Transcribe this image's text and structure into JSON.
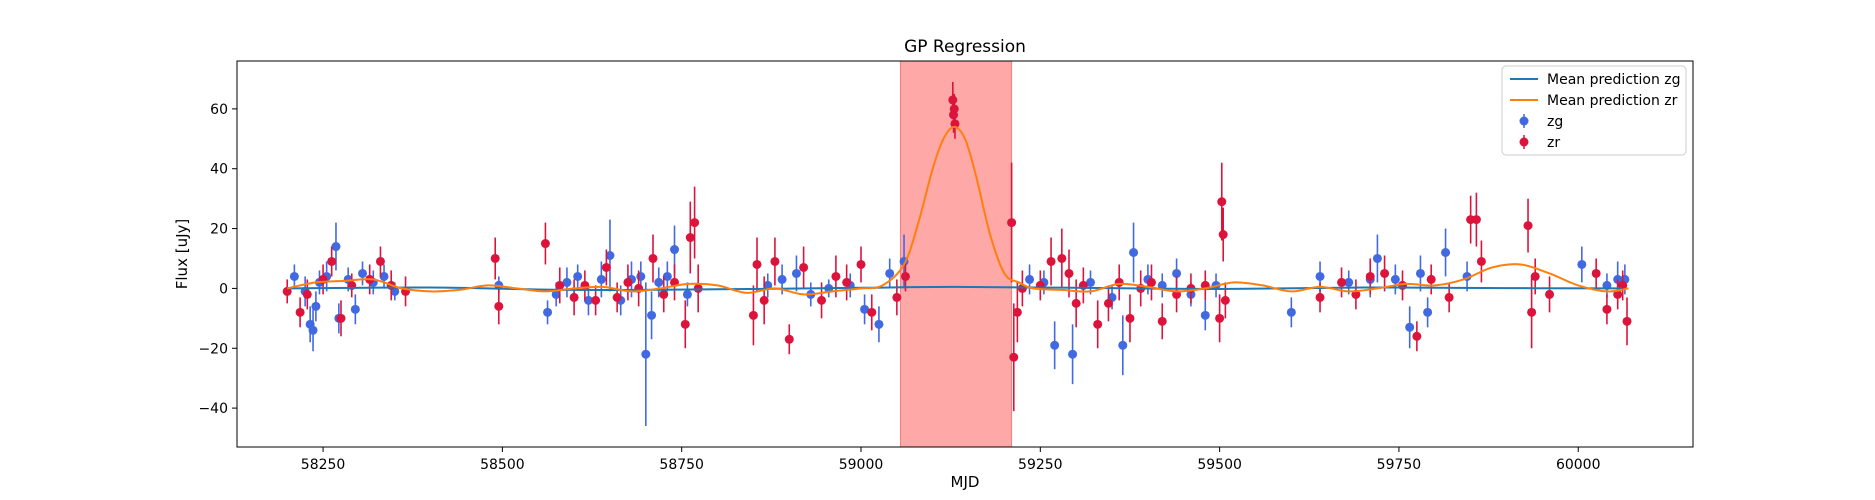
{
  "chart_data": {
    "type": "scatter",
    "title": "GP Regression",
    "xlabel": "MJD",
    "ylabel": "Flux [uJy]",
    "xlim": [
      58130,
      60160
    ],
    "ylim": [
      -53,
      76
    ],
    "xticks": [
      58250,
      58500,
      58750,
      59000,
      59250,
      59500,
      59750,
      60000
    ],
    "yticks": [
      -40,
      -20,
      0,
      20,
      40,
      60
    ],
    "grid": false,
    "legend_position": "top-right",
    "shaded_region": {
      "x": [
        59055,
        59210
      ],
      "color": "#ff9999"
    },
    "lines": [
      {
        "name": "Mean prediction zg",
        "color": "#1f77b4",
        "x": [
          58200,
          58400,
          58600,
          58800,
          59000,
          59130,
          59300,
          59500,
          59700,
          59900,
          60060
        ],
        "y": [
          0,
          0.3,
          -0.5,
          -0.3,
          0.2,
          0.5,
          0.2,
          -0.2,
          0.3,
          0.1,
          0
        ]
      },
      {
        "name": "Mean prediction zr",
        "color": "#ff7f0e",
        "x": [
          58200,
          58240,
          58280,
          58320,
          58360,
          58400,
          58440,
          58480,
          58520,
          58560,
          58600,
          58640,
          58680,
          58720,
          58760,
          58800,
          58840,
          58880,
          58920,
          58960,
          59000,
          59030,
          59060,
          59080,
          59100,
          59115,
          59130,
          59145,
          59160,
          59180,
          59200,
          59220,
          59240,
          59280,
          59320,
          59360,
          59400,
          59440,
          59480,
          59520,
          59560,
          59600,
          59640,
          59680,
          59720,
          59760,
          59800,
          59840,
          59880,
          59920,
          59960,
          60000,
          60040,
          60070
        ],
        "y": [
          0,
          2,
          2.5,
          3,
          0,
          -1,
          -0.5,
          1,
          0,
          -1,
          0,
          0.5,
          -1,
          0,
          1.5,
          1,
          -1.5,
          0,
          -2,
          -1,
          0,
          1,
          8,
          22,
          40,
          50,
          54,
          50,
          38,
          18,
          5,
          2,
          0,
          -0.5,
          -1,
          1.5,
          0.5,
          -1,
          0,
          2,
          1,
          -1,
          0.5,
          -1,
          0,
          1.5,
          1,
          3,
          7,
          8,
          5,
          1,
          -1,
          0
        ]
      }
    ],
    "series": [
      {
        "name": "zg",
        "color": "#4169e1",
        "points": [
          [
            58210,
            4,
            4
          ],
          [
            58225,
            -1,
            5
          ],
          [
            58232,
            -12,
            6
          ],
          [
            58236,
            -14,
            7
          ],
          [
            58240,
            -6,
            5
          ],
          [
            58245,
            2,
            4
          ],
          [
            58255,
            4,
            5
          ],
          [
            58268,
            14,
            8
          ],
          [
            58272,
            -10,
            5
          ],
          [
            58285,
            3,
            4
          ],
          [
            58295,
            -7,
            5
          ],
          [
            58305,
            5,
            4
          ],
          [
            58320,
            2,
            4
          ],
          [
            58335,
            4,
            4
          ],
          [
            58350,
            -1,
            3
          ],
          [
            58495,
            1,
            3
          ],
          [
            58563,
            -8,
            4
          ],
          [
            58575,
            -2,
            4
          ],
          [
            58590,
            2,
            5
          ],
          [
            58605,
            4,
            4
          ],
          [
            58620,
            -4,
            5
          ],
          [
            58638,
            3,
            6
          ],
          [
            58650,
            11,
            12
          ],
          [
            58665,
            -4,
            5
          ],
          [
            58680,
            3,
            6
          ],
          [
            58693,
            4,
            5
          ],
          [
            58700,
            -22,
            24
          ],
          [
            58708,
            -9,
            8
          ],
          [
            58718,
            2,
            5
          ],
          [
            58730,
            4,
            5
          ],
          [
            58740,
            13,
            8
          ],
          [
            58758,
            -2,
            4
          ],
          [
            58870,
            1,
            4
          ],
          [
            58890,
            3,
            5
          ],
          [
            58910,
            5,
            6
          ],
          [
            58930,
            -2,
            4
          ],
          [
            58955,
            0,
            3
          ],
          [
            58985,
            1,
            4
          ],
          [
            59005,
            -7,
            5
          ],
          [
            59025,
            -12,
            6
          ],
          [
            59040,
            5,
            5
          ],
          [
            59060,
            9,
            9
          ],
          [
            59235,
            3,
            5
          ],
          [
            59255,
            2,
            4
          ],
          [
            59270,
            -19,
            8
          ],
          [
            59295,
            -22,
            10
          ],
          [
            59320,
            2,
            4
          ],
          [
            59350,
            -3,
            4
          ],
          [
            59365,
            -19,
            10
          ],
          [
            59380,
            12,
            10
          ],
          [
            59400,
            3,
            5
          ],
          [
            59420,
            1,
            4
          ],
          [
            59440,
            5,
            5
          ],
          [
            59460,
            -2,
            4
          ],
          [
            59480,
            -9,
            5
          ],
          [
            59495,
            1,
            4
          ],
          [
            59600,
            -8,
            5
          ],
          [
            59640,
            4,
            5
          ],
          [
            59680,
            2,
            4
          ],
          [
            59710,
            3,
            6
          ],
          [
            59720,
            10,
            8
          ],
          [
            59745,
            3,
            5
          ],
          [
            59765,
            -13,
            7
          ],
          [
            59780,
            5,
            6
          ],
          [
            59790,
            -8,
            5
          ],
          [
            59815,
            12,
            8
          ],
          [
            59845,
            4,
            5
          ],
          [
            60005,
            8,
            6
          ],
          [
            60040,
            1,
            4
          ],
          [
            60055,
            3,
            6
          ],
          [
            60065,
            3,
            5
          ]
        ]
      },
      {
        "name": "zr",
        "color": "#dc143c",
        "points": [
          [
            58200,
            -1,
            4
          ],
          [
            58218,
            -8,
            5
          ],
          [
            58228,
            -2,
            5
          ],
          [
            58250,
            3,
            5
          ],
          [
            58262,
            9,
            5
          ],
          [
            58275,
            -10,
            6
          ],
          [
            58290,
            1,
            4
          ],
          [
            58315,
            3,
            5
          ],
          [
            58330,
            9,
            5
          ],
          [
            58345,
            1,
            5
          ],
          [
            58365,
            -1,
            5
          ],
          [
            58490,
            10,
            7
          ],
          [
            58495,
            -6,
            6
          ],
          [
            58560,
            15,
            7
          ],
          [
            58580,
            1,
            6
          ],
          [
            58600,
            -3,
            6
          ],
          [
            58615,
            1,
            5
          ],
          [
            58630,
            -4,
            5
          ],
          [
            58645,
            7,
            6
          ],
          [
            58660,
            -3,
            5
          ],
          [
            58675,
            2,
            6
          ],
          [
            58690,
            0,
            6
          ],
          [
            58710,
            10,
            8
          ],
          [
            58725,
            -2,
            6
          ],
          [
            58740,
            2,
            6
          ],
          [
            58755,
            -12,
            8
          ],
          [
            58762,
            17,
            12
          ],
          [
            58768,
            22,
            12
          ],
          [
            58773,
            0,
            8
          ],
          [
            58850,
            -9,
            10
          ],
          [
            58855,
            8,
            9
          ],
          [
            58865,
            -4,
            8
          ],
          [
            58880,
            9,
            8
          ],
          [
            58900,
            -17,
            5
          ],
          [
            58920,
            7,
            7
          ],
          [
            58945,
            -4,
            6
          ],
          [
            58965,
            4,
            7
          ],
          [
            58980,
            2,
            6
          ],
          [
            59000,
            8,
            6
          ],
          [
            59015,
            -8,
            6
          ],
          [
            59050,
            -3,
            6
          ],
          [
            59062,
            4,
            5
          ],
          [
            59128,
            63,
            6
          ],
          [
            59129,
            58,
            6
          ],
          [
            59130,
            60,
            5
          ],
          [
            59131,
            55,
            5
          ],
          [
            59210,
            22,
            20
          ],
          [
            59213,
            -23,
            18
          ],
          [
            59218,
            -8,
            10
          ],
          [
            59225,
            0,
            6
          ],
          [
            59250,
            1,
            5
          ],
          [
            59265,
            9,
            8
          ],
          [
            59280,
            10,
            10
          ],
          [
            59290,
            5,
            8
          ],
          [
            59300,
            -5,
            8
          ],
          [
            59310,
            1,
            6
          ],
          [
            59330,
            -12,
            8
          ],
          [
            59345,
            -5,
            6
          ],
          [
            59360,
            2,
            6
          ],
          [
            59375,
            -10,
            8
          ],
          [
            59390,
            0,
            6
          ],
          [
            59405,
            2,
            6
          ],
          [
            59420,
            -11,
            6
          ],
          [
            59440,
            -2,
            6
          ],
          [
            59460,
            0,
            5
          ],
          [
            59480,
            1,
            5
          ],
          [
            59500,
            -10,
            8
          ],
          [
            59503,
            29,
            13
          ],
          [
            59505,
            18,
            9
          ],
          [
            59508,
            -4,
            6
          ],
          [
            59640,
            -3,
            5
          ],
          [
            59670,
            2,
            5
          ],
          [
            59690,
            -2,
            5
          ],
          [
            59710,
            4,
            6
          ],
          [
            59730,
            5,
            6
          ],
          [
            59755,
            1,
            5
          ],
          [
            59775,
            -16,
            5
          ],
          [
            59795,
            3,
            5
          ],
          [
            59820,
            -3,
            5
          ],
          [
            59850,
            23,
            8
          ],
          [
            59858,
            23,
            9
          ],
          [
            59865,
            9,
            7
          ],
          [
            59930,
            21,
            9
          ],
          [
            59935,
            -8,
            12
          ],
          [
            59940,
            4,
            6
          ],
          [
            59960,
            -2,
            6
          ],
          [
            60025,
            5,
            5
          ],
          [
            60040,
            -7,
            5
          ],
          [
            60055,
            -2,
            5
          ],
          [
            60062,
            1,
            5
          ],
          [
            60068,
            -11,
            8
          ]
        ]
      }
    ]
  }
}
